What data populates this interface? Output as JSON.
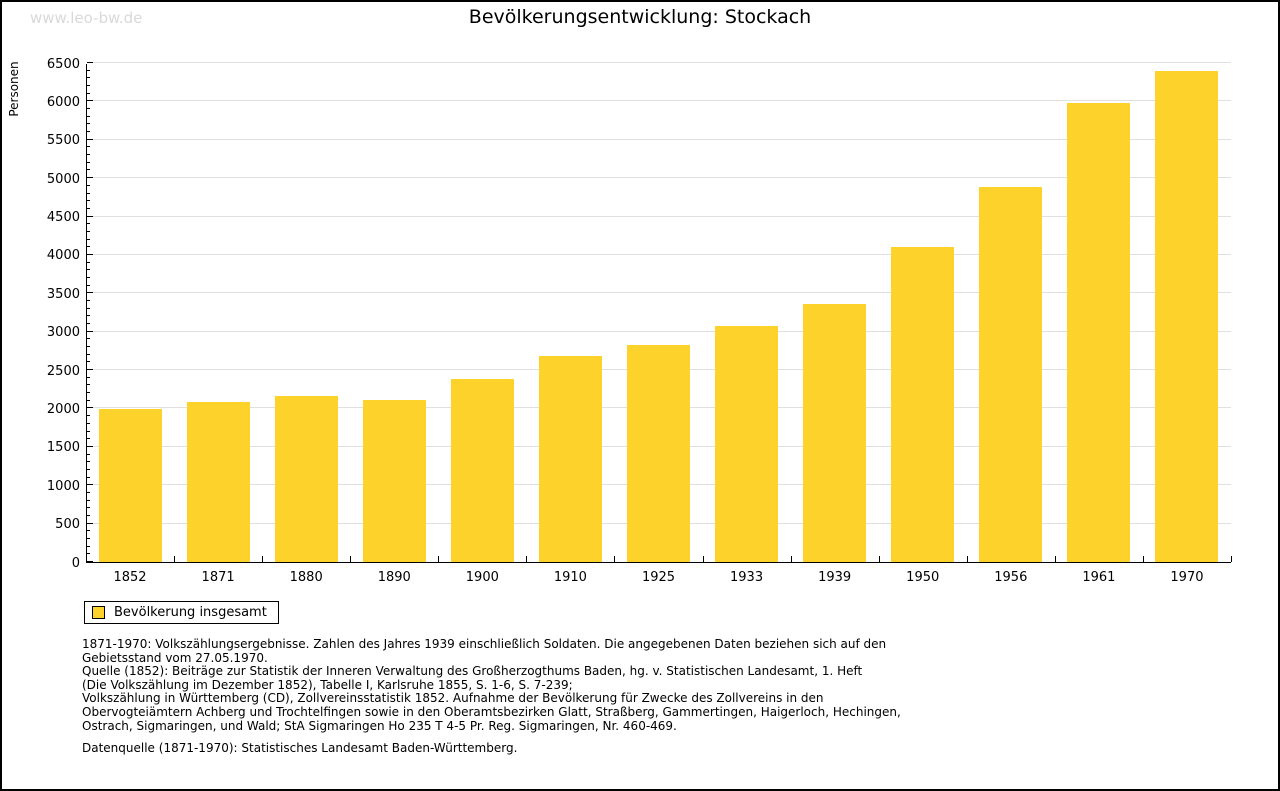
{
  "header": {
    "watermark": "www.leo-bw.de",
    "title": "Bevölkerungsentwicklung: Stockach"
  },
  "chart_data": {
    "type": "bar",
    "title": "Bevölkerungsentwicklung: Stockach",
    "xlabel": "",
    "ylabel": "Personen",
    "categories": [
      "1852",
      "1871",
      "1880",
      "1890",
      "1900",
      "1910",
      "1925",
      "1933",
      "1939",
      "1950",
      "1956",
      "1961",
      "1970"
    ],
    "values": [
      1990,
      2080,
      2160,
      2110,
      2380,
      2680,
      2825,
      3070,
      3360,
      4100,
      4890,
      5975,
      6390
    ],
    "series_name": "Bevölkerung insgesamt",
    "ylim": [
      0,
      6500
    ],
    "ytick_step": 500,
    "ytick_minor_step": 100,
    "grid": true,
    "bar_color": "#fdd32b",
    "legend_position": "bottom-left"
  },
  "legend": {
    "label": "Bevölkerung insgesamt"
  },
  "notes": {
    "sources": "1871-1970: Volkszählungsergebnisse. Zahlen des Jahres 1939 einschließlich Soldaten. Die angegebenen Daten beziehen sich auf den\nGebietsstand vom 27.05.1970.\nQuelle (1852): Beiträge zur Statistik der Inneren Verwaltung des Großherzogthums Baden, hg. v. Statistischen Landesamt, 1. Heft\n(Die Volkszählung im Dezember 1852), Tabelle I, Karlsruhe 1855, S. 1-6, S. 7-239;\nVolkszählung in Württemberg (CD), Zollvereinsstatistik 1852. Aufnahme der Bevölkerung für Zwecke des Zollvereins in den\nObervogteiämtern Achberg und Trochtelfingen sowie in den Oberamtsbezirken Glatt, Straßberg, Gammertingen, Haigerloch, Hechingen,\nOstrach, Sigmaringen, und Wald; StA Sigmaringen Ho 235 T 4-5 Pr. Reg. Sigmaringen, Nr. 460-469.",
    "datasource": "Datenquelle (1871-1970): Statistisches Landesamt Baden-Württemberg."
  },
  "colors": {
    "bar": "#fdd32b",
    "gridline": "#e0e0e0",
    "watermark": "#d9d9d9",
    "axis": "#000000"
  }
}
